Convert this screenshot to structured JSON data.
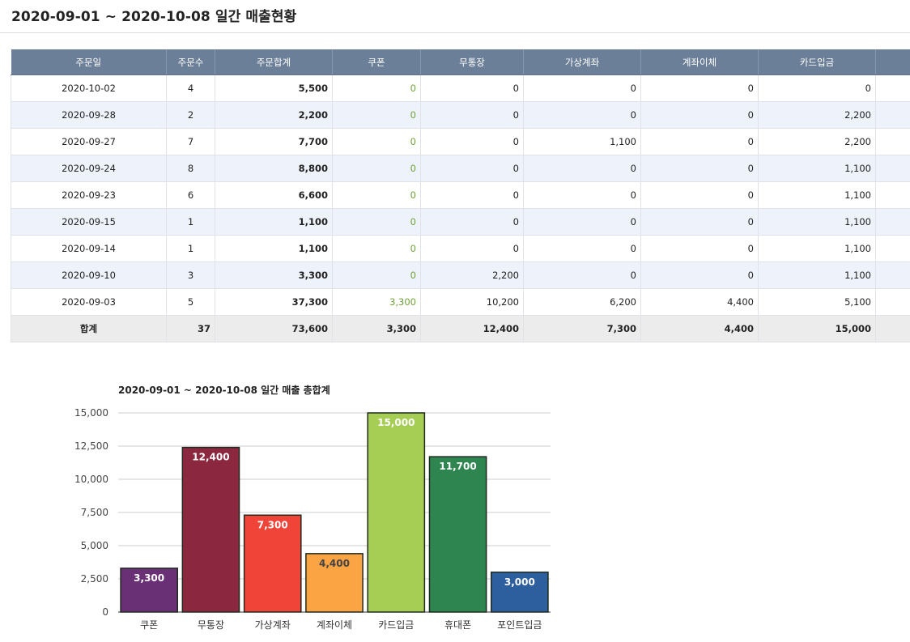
{
  "title": "2020-09-01 ~ 2020-10-08 일간 매출현황",
  "table": {
    "columns": [
      "주문일",
      "주문수",
      "주문합계",
      "쿠폰",
      "무통장",
      "가상계좌",
      "계좌이체",
      "카드입금"
    ],
    "rows": [
      [
        "2020-10-02",
        "4",
        "5,500",
        "0",
        "0",
        "0",
        "0",
        "0"
      ],
      [
        "2020-09-28",
        "2",
        "2,200",
        "0",
        "0",
        "0",
        "0",
        "2,200"
      ],
      [
        "2020-09-27",
        "7",
        "7,700",
        "0",
        "0",
        "1,100",
        "0",
        "2,200"
      ],
      [
        "2020-09-24",
        "8",
        "8,800",
        "0",
        "0",
        "0",
        "0",
        "1,100"
      ],
      [
        "2020-09-23",
        "6",
        "6,600",
        "0",
        "0",
        "0",
        "0",
        "1,100"
      ],
      [
        "2020-09-15",
        "1",
        "1,100",
        "0",
        "0",
        "0",
        "0",
        "1,100"
      ],
      [
        "2020-09-14",
        "1",
        "1,100",
        "0",
        "0",
        "0",
        "0",
        "1,100"
      ],
      [
        "2020-09-10",
        "3",
        "3,300",
        "0",
        "2,200",
        "0",
        "0",
        "1,100"
      ],
      [
        "2020-09-03",
        "5",
        "37,300",
        "3,300",
        "10,200",
        "6,200",
        "4,400",
        "5,100"
      ]
    ],
    "total": [
      "합계",
      "37",
      "73,600",
      "3,300",
      "12,400",
      "7,300",
      "4,400",
      "15,000"
    ]
  },
  "chart_data": {
    "type": "bar",
    "title": "2020-09-01 ~ 2020-10-08 일간 매출 총합계",
    "categories": [
      "쿠폰",
      "무통장",
      "가상계좌",
      "계좌이체",
      "카드입금",
      "휴대폰",
      "포인트입금"
    ],
    "values": [
      3300,
      12400,
      7300,
      4400,
      15000,
      11700,
      3000
    ],
    "value_labels": [
      "3,300",
      "12,400",
      "7,300",
      "4,400",
      "15,000",
      "11,700",
      "3,000"
    ],
    "bar_colors": [
      "#6a3075",
      "#8b2840",
      "#f04438",
      "#fba443",
      "#a6cd54",
      "#2f8550",
      "#2d5f9e"
    ],
    "label_colors": [
      "#ffffff",
      "#ffffff",
      "#ffffff",
      "#444444",
      "#ffffff",
      "#ffffff",
      "#ffffff"
    ],
    "yticks": [
      0,
      2500,
      5000,
      7500,
      10000,
      12500,
      15000
    ],
    "ytick_labels": [
      "0",
      "2,500",
      "5,000",
      "7,500",
      "10,000",
      "12,500",
      "15,000"
    ],
    "ylim": [
      0,
      15000
    ],
    "grid": true
  }
}
